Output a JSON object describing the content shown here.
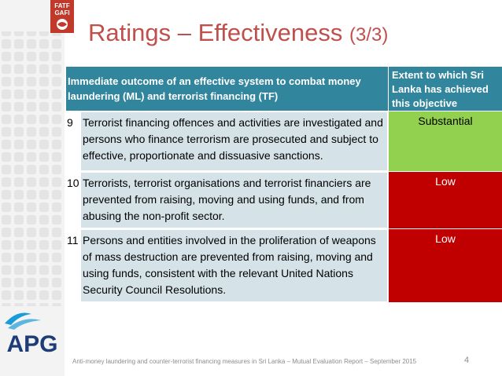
{
  "logo": {
    "fatf_text_1": "FATF",
    "fatf_text_2": "GAFI",
    "apg_text": "APG"
  },
  "title": {
    "main": "Ratings – Effectiveness",
    "suffix": "(3/3)"
  },
  "table": {
    "header": {
      "outcome": "Immediate outcome of an effective system to combat money laundering (ML) and terrorist financing (TF)",
      "extent": "Extent to which Sri Lanka has achieved this objective"
    },
    "rows": [
      {
        "number": "9",
        "description": "Terrorist financing offences and activities are investigated and persons who finance terrorism are prosecuted and subject to effective, proportionate and dissuasive sanctions.",
        "rating": "Substantial"
      },
      {
        "number": "10",
        "description": "Terrorists, terrorist organisations and terrorist financiers are prevented from raising, moving and using funds, and from abusing the non-profit sector.",
        "rating": "Low"
      },
      {
        "number": "11",
        "description": "Persons and entities involved in the proliferation of weapons of mass destruction are prevented from raising, moving and using funds, consistent with the relevant United Nations Security Council Resolutions.",
        "rating": "Low"
      }
    ]
  },
  "colors": {
    "title": "#c0504d",
    "header_bg": "#31859c",
    "substantial": "#92d050",
    "low": "#c00000",
    "desc_bg": "#d5e3e8"
  },
  "footer": {
    "text": "Anti-money laundering and counter-terrorist financing measures in Sri Lanka – Mutual Evaluation Report – September 2015",
    "page_number": "4"
  }
}
